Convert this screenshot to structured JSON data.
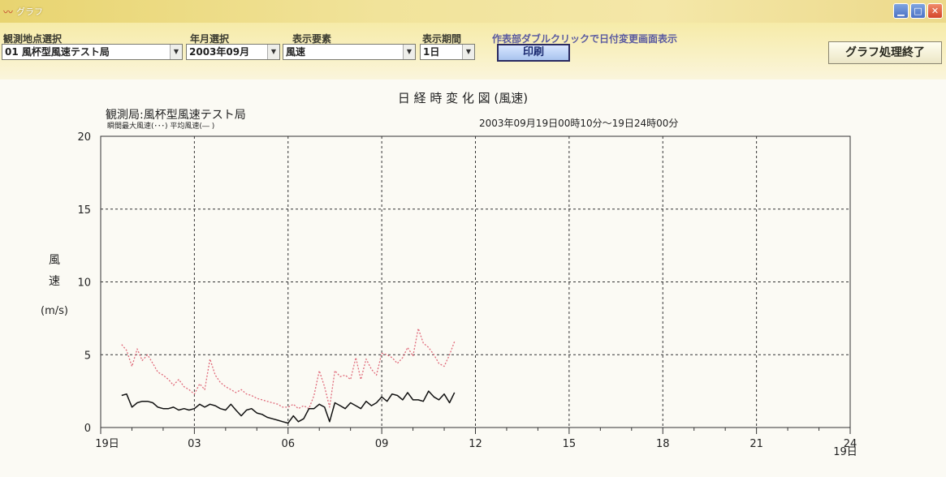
{
  "window": {
    "title": "グラフ",
    "app_icon": "chart-icon",
    "min_label": "▁",
    "max_label": "□",
    "close_label": "✕"
  },
  "toolbar": {
    "station_label": "観測地点選択",
    "station_value": "01 風杯型風速テスト局",
    "yearmonth_label": "年月選択",
    "yearmonth_value": "2003年09月",
    "element_label": "表示要素",
    "element_value": "風速",
    "period_label": "表示期間",
    "period_value": "1日",
    "hint": "作表部ダブルクリックで日付変更画面表示",
    "print_label": "印刷",
    "end_label": "グラフ処理終了",
    "dropdown_arrow": "▼"
  },
  "colors": {
    "max_series": "#e06a7a",
    "avg_series": "#111111",
    "grid": "#333333"
  },
  "chart_data": {
    "type": "line",
    "title": "日 経 時 変 化 図 (風速)",
    "station_caption": "観測局:風杯型風速テスト局",
    "legend_caption": "瞬間最大風速(･･･) 平均風速(― )",
    "period_caption": "2003年09月19日00時10分～19日24時00分",
    "ylabel_chars": [
      "風",
      "速"
    ],
    "yunit": "(m/s)",
    "ylim": [
      0,
      20
    ],
    "yticks": [
      0,
      5,
      10,
      15,
      20
    ],
    "xlim": [
      0,
      24
    ],
    "xticks": [
      {
        "x": 0,
        "label": "19日"
      },
      {
        "x": 3,
        "label": "03"
      },
      {
        "x": 6,
        "label": "06"
      },
      {
        "x": 9,
        "label": "09"
      },
      {
        "x": 12,
        "label": "12"
      },
      {
        "x": 15,
        "label": "15"
      },
      {
        "x": 18,
        "label": "18"
      },
      {
        "x": 21,
        "label": "21"
      },
      {
        "x": 24,
        "label": "24"
      }
    ],
    "xtick_last_sub": "19日",
    "grid": true,
    "x": [
      0.67,
      0.83,
      1.0,
      1.17,
      1.33,
      1.5,
      1.67,
      1.83,
      2.0,
      2.17,
      2.33,
      2.5,
      2.67,
      2.83,
      3.0,
      3.17,
      3.33,
      3.5,
      3.67,
      3.83,
      4.0,
      4.17,
      4.33,
      4.5,
      4.67,
      4.83,
      5.0,
      5.17,
      5.33,
      5.5,
      5.67,
      5.83,
      6.0,
      6.17,
      6.33,
      6.5,
      6.67,
      6.83,
      7.0,
      7.17,
      7.33,
      7.5,
      7.67,
      7.83,
      8.0,
      8.17,
      8.33,
      8.5,
      8.67,
      8.83,
      9.0,
      9.17,
      9.33,
      9.5,
      9.67,
      9.83,
      10.0,
      10.17,
      10.33,
      10.5,
      10.67,
      10.83,
      11.0,
      11.17,
      11.33
    ],
    "series": [
      {
        "name": "瞬間最大風速",
        "style": "dotted",
        "values": [
          5.7,
          5.3,
          4.2,
          5.4,
          4.6,
          5.0,
          4.4,
          3.8,
          3.6,
          3.3,
          2.9,
          3.3,
          2.8,
          2.6,
          2.3,
          3.0,
          2.6,
          4.7,
          3.6,
          3.1,
          2.8,
          2.6,
          2.4,
          2.6,
          2.3,
          2.2,
          2.0,
          1.9,
          1.8,
          1.7,
          1.6,
          1.4,
          1.4,
          1.6,
          1.3,
          1.5,
          1.3,
          2.2,
          3.9,
          2.8,
          1.4,
          3.9,
          3.5,
          3.6,
          3.3,
          4.8,
          3.3,
          4.7,
          4.0,
          3.6,
          5.1,
          5.0,
          4.8,
          4.4,
          4.8,
          5.5,
          4.9,
          6.8,
          5.8,
          5.5,
          5.0,
          4.4,
          4.2,
          5.0,
          5.9
        ]
      },
      {
        "name": "平均風速",
        "style": "solid",
        "values": [
          2.2,
          2.3,
          1.4,
          1.7,
          1.8,
          1.8,
          1.7,
          1.4,
          1.3,
          1.3,
          1.4,
          1.2,
          1.3,
          1.2,
          1.3,
          1.6,
          1.4,
          1.6,
          1.5,
          1.3,
          1.2,
          1.6,
          1.2,
          0.8,
          1.2,
          1.3,
          1.0,
          0.9,
          0.7,
          0.6,
          0.5,
          0.4,
          0.3,
          0.8,
          0.4,
          0.6,
          1.3,
          1.3,
          1.6,
          1.4,
          0.4,
          1.7,
          1.5,
          1.3,
          1.7,
          1.5,
          1.3,
          1.8,
          1.5,
          1.7,
          2.1,
          1.8,
          2.3,
          2.2,
          1.9,
          2.4,
          1.9,
          1.9,
          1.8,
          2.5,
          2.1,
          1.9,
          2.3,
          1.7,
          2.4
        ]
      }
    ]
  }
}
